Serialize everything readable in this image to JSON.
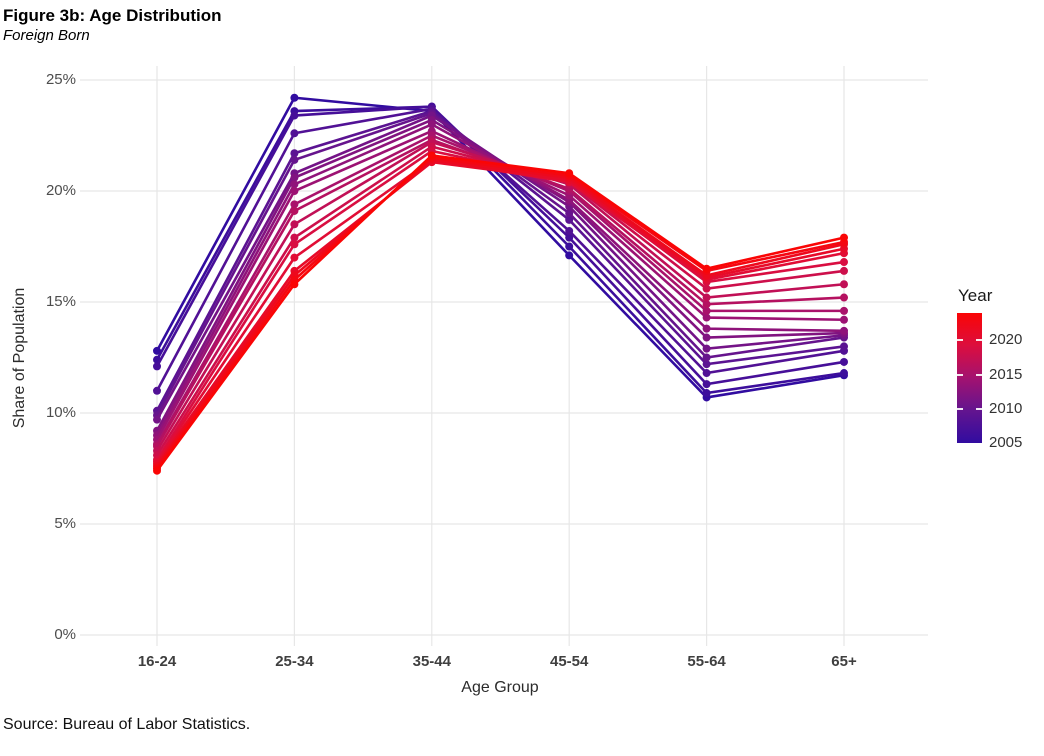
{
  "header": {
    "title": "Figure 3b: Age Distribution",
    "subtitle": "Foreign Born"
  },
  "footer": {
    "source": "Source: Bureau of Labor Statistics."
  },
  "chart_data": {
    "type": "line",
    "title": "Figure 3b: Age Distribution",
    "subtitle": "Foreign Born",
    "xlabel": "Age Group",
    "ylabel": "Share of Population",
    "categories": [
      "16-24",
      "25-34",
      "35-44",
      "45-54",
      "55-64",
      "65+"
    ],
    "y_ticks": [
      "0%",
      "5%",
      "10%",
      "15%",
      "20%",
      "25%"
    ],
    "y_tick_values": [
      0,
      5,
      10,
      15,
      20,
      25
    ],
    "ylim": [
      0,
      26
    ],
    "grid": true,
    "legend": {
      "title": "Year",
      "position": "right",
      "style": "gradient-colorbar",
      "labels": [
        "2020",
        "2015",
        "2010",
        "2005"
      ],
      "year_min": 2005,
      "year_max": 2024,
      "color_low": "#310CA0",
      "color_high": "#FA0505",
      "color_stops": [
        "#310CA0",
        "#63148F",
        "#A31270",
        "#DC0E3E",
        "#FA0505"
      ]
    },
    "series": [
      {
        "name": "2005",
        "year": 2005,
        "values": [
          12.8,
          24.2,
          23.6,
          17.1,
          10.7,
          11.7
        ]
      },
      {
        "name": "2006",
        "year": 2006,
        "values": [
          12.4,
          23.6,
          23.8,
          17.5,
          10.9,
          11.8
        ]
      },
      {
        "name": "2007",
        "year": 2007,
        "values": [
          12.1,
          23.4,
          23.8,
          17.9,
          11.3,
          12.3
        ]
      },
      {
        "name": "2008",
        "year": 2008,
        "values": [
          11.0,
          22.6,
          23.7,
          18.2,
          11.8,
          12.8
        ]
      },
      {
        "name": "2009",
        "year": 2009,
        "values": [
          10.1,
          21.7,
          23.6,
          18.7,
          12.2,
          13.0
        ]
      },
      {
        "name": "2010",
        "year": 2010,
        "values": [
          9.9,
          21.4,
          23.5,
          19.0,
          12.5,
          13.4
        ]
      },
      {
        "name": "2011",
        "year": 2011,
        "values": [
          9.7,
          20.8,
          23.4,
          19.3,
          12.9,
          13.5
        ]
      },
      {
        "name": "2012",
        "year": 2012,
        "values": [
          9.2,
          20.6,
          23.2,
          19.5,
          13.4,
          13.6
        ]
      },
      {
        "name": "2013",
        "year": 2013,
        "values": [
          9.0,
          20.3,
          23.0,
          19.6,
          13.8,
          13.7
        ]
      },
      {
        "name": "2014",
        "year": 2014,
        "values": [
          8.8,
          20.0,
          22.7,
          19.8,
          14.3,
          14.2
        ]
      },
      {
        "name": "2015",
        "year": 2015,
        "values": [
          8.6,
          19.4,
          22.5,
          20.0,
          14.6,
          14.6
        ]
      },
      {
        "name": "2016",
        "year": 2016,
        "values": [
          8.5,
          19.1,
          22.3,
          20.1,
          14.9,
          15.2
        ]
      },
      {
        "name": "2017",
        "year": 2017,
        "values": [
          8.3,
          18.5,
          22.2,
          20.3,
          15.2,
          15.8
        ]
      },
      {
        "name": "2018",
        "year": 2018,
        "values": [
          8.1,
          17.9,
          22.0,
          20.4,
          15.6,
          16.4
        ]
      },
      {
        "name": "2019",
        "year": 2019,
        "values": [
          7.9,
          17.6,
          21.8,
          20.5,
          15.9,
          16.8
        ]
      },
      {
        "name": "2020",
        "year": 2020,
        "values": [
          7.8,
          17.0,
          21.4,
          20.4,
          16.0,
          17.2
        ]
      },
      {
        "name": "2021",
        "year": 2021,
        "values": [
          7.7,
          16.4,
          21.3,
          20.5,
          16.1,
          17.4
        ]
      },
      {
        "name": "2022",
        "year": 2022,
        "values": [
          7.6,
          16.2,
          21.4,
          20.6,
          16.2,
          17.6
        ]
      },
      {
        "name": "2023",
        "year": 2023,
        "values": [
          7.5,
          16.0,
          21.5,
          20.7,
          16.4,
          17.7
        ]
      },
      {
        "name": "2024",
        "year": 2024,
        "values": [
          7.4,
          15.8,
          21.6,
          20.8,
          16.5,
          17.9
        ]
      }
    ]
  }
}
